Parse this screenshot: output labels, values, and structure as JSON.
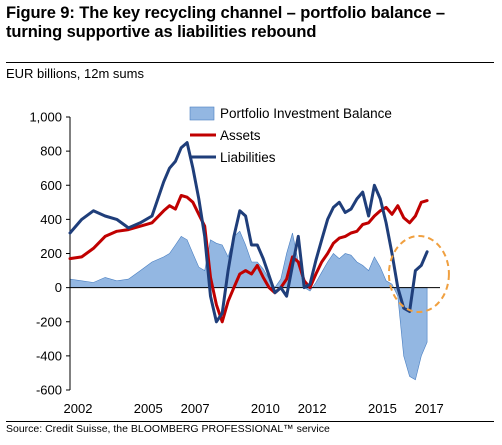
{
  "header": {
    "title": "Figure 9: The key recycling channel – portfolio balance – turning supportive as liabilities rebound",
    "subtitle": "EUR billions, 12m sums"
  },
  "footer": {
    "source": "Source: Credit Suisse, the BLOOMBERG PROFESSIONAL™ service"
  },
  "chart_data": {
    "type": "line",
    "title": "Figure 9: The key recycling channel – portfolio balance – turning supportive as liabilities rebound",
    "ylabel": "EUR billions, 12m sums",
    "xlabel": "",
    "ylim": [
      -600,
      1000
    ],
    "xlim": [
      2002,
      2017.8
    ],
    "y_ticks": [
      1000,
      800,
      600,
      400,
      200,
      0,
      -200,
      -400,
      -600
    ],
    "y_tick_labels": [
      "1,000",
      "800",
      "600",
      "400",
      "200",
      "0",
      "-200",
      "-400",
      "-600"
    ],
    "x_ticks": [
      2002,
      2005,
      2007,
      2010,
      2012,
      2015,
      2017
    ],
    "x_tick_labels": [
      "2002",
      "2005",
      "2007",
      "2010",
      "2012",
      "2015",
      "2017"
    ],
    "legend_position": "top-right",
    "grid": false,
    "annotation": "dashed orange circle around 2016–2017",
    "series": [
      {
        "name": "Portfolio Investment Balance",
        "kind": "area",
        "color": "#6f9fd8",
        "x": [
          2002.0,
          2002.5,
          2003.0,
          2003.5,
          2004.0,
          2004.5,
          2005.0,
          2005.5,
          2006.0,
          2006.25,
          2006.5,
          2006.75,
          2007.0,
          2007.25,
          2007.5,
          2007.75,
          2008.0,
          2008.25,
          2008.5,
          2008.75,
          2009.0,
          2009.25,
          2009.5,
          2009.75,
          2010.0,
          2010.25,
          2010.5,
          2010.75,
          2011.0,
          2011.25,
          2011.5,
          2011.75,
          2012.0,
          2012.25,
          2012.5,
          2012.75,
          2013.0,
          2013.25,
          2013.5,
          2013.75,
          2014.0,
          2014.25,
          2014.5,
          2014.75,
          2015.0,
          2015.25,
          2015.5,
          2015.75,
          2016.0,
          2016.25,
          2016.5,
          2016.75,
          2017.0,
          2017.25
        ],
        "y": [
          50,
          40,
          30,
          60,
          40,
          50,
          100,
          150,
          180,
          200,
          250,
          300,
          280,
          200,
          120,
          100,
          280,
          260,
          250,
          180,
          300,
          330,
          250,
          150,
          150,
          110,
          50,
          0,
          50,
          200,
          320,
          150,
          0,
          -20,
          30,
          90,
          150,
          200,
          170,
          200,
          190,
          150,
          130,
          100,
          180,
          120,
          40,
          20,
          -50,
          -400,
          -520,
          -540,
          -400,
          -320
        ]
      },
      {
        "name": "Assets",
        "kind": "line",
        "color": "#c00000",
        "x": [
          2002.0,
          2002.5,
          2003.0,
          2003.5,
          2004.0,
          2004.5,
          2005.0,
          2005.5,
          2006.0,
          2006.25,
          2006.5,
          2006.75,
          2007.0,
          2007.25,
          2007.5,
          2007.75,
          2008.0,
          2008.25,
          2008.5,
          2008.75,
          2009.0,
          2009.25,
          2009.5,
          2009.75,
          2010.0,
          2010.25,
          2010.5,
          2010.75,
          2011.0,
          2011.25,
          2011.5,
          2011.75,
          2012.0,
          2012.25,
          2012.5,
          2012.75,
          2013.0,
          2013.25,
          2013.5,
          2013.75,
          2014.0,
          2014.25,
          2014.5,
          2014.75,
          2015.0,
          2015.25,
          2015.5,
          2015.75,
          2016.0,
          2016.25,
          2016.5,
          2016.75,
          2017.0,
          2017.25
        ],
        "y": [
          170,
          180,
          230,
          300,
          330,
          340,
          360,
          380,
          450,
          480,
          460,
          540,
          530,
          500,
          430,
          360,
          60,
          -100,
          -200,
          -80,
          0,
          80,
          100,
          80,
          130,
          60,
          0,
          -30,
          0,
          50,
          180,
          150,
          40,
          0,
          80,
          150,
          200,
          260,
          290,
          300,
          320,
          330,
          370,
          380,
          420,
          450,
          470,
          430,
          480,
          410,
          380,
          420,
          500,
          510
        ]
      },
      {
        "name": "Liabilities",
        "kind": "line",
        "color": "#1f3e7a",
        "x": [
          2002.0,
          2002.5,
          2003.0,
          2003.5,
          2004.0,
          2004.5,
          2005.0,
          2005.5,
          2006.0,
          2006.25,
          2006.5,
          2006.75,
          2007.0,
          2007.25,
          2007.5,
          2007.75,
          2008.0,
          2008.25,
          2008.5,
          2008.75,
          2009.0,
          2009.25,
          2009.5,
          2009.75,
          2010.0,
          2010.25,
          2010.5,
          2010.75,
          2011.0,
          2011.25,
          2011.5,
          2011.75,
          2012.0,
          2012.25,
          2012.5,
          2012.75,
          2013.0,
          2013.25,
          2013.5,
          2013.75,
          2014.0,
          2014.25,
          2014.5,
          2014.75,
          2015.0,
          2015.25,
          2015.5,
          2015.75,
          2016.0,
          2016.25,
          2016.5,
          2016.75,
          2017.0,
          2017.25
        ],
        "y": [
          320,
          400,
          450,
          420,
          400,
          350,
          380,
          420,
          620,
          700,
          740,
          820,
          850,
          700,
          520,
          300,
          -50,
          -200,
          -150,
          100,
          300,
          450,
          420,
          250,
          250,
          170,
          70,
          -30,
          0,
          -50,
          130,
          300,
          0,
          20,
          160,
          280,
          400,
          470,
          500,
          440,
          460,
          520,
          560,
          420,
          600,
          520,
          380,
          200,
          0,
          -120,
          -140,
          100,
          130,
          210
        ]
      }
    ]
  }
}
